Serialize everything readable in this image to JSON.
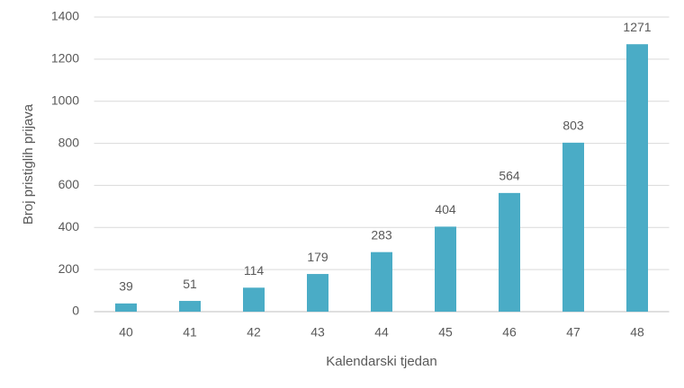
{
  "chart_data": {
    "type": "bar",
    "x_label": "Kalendarski tjedan",
    "y_label": "Broj pristiglih prijava",
    "categories": [
      "40",
      "41",
      "42",
      "43",
      "44",
      "45",
      "46",
      "47",
      "48"
    ],
    "values": [
      39,
      51,
      114,
      179,
      283,
      404,
      564,
      803,
      1271
    ],
    "color": "#4aacc6",
    "ylim": [
      0,
      1400
    ],
    "yticks": [
      0,
      200,
      400,
      600,
      800,
      1000,
      1200,
      1400
    ],
    "grid": true
  }
}
